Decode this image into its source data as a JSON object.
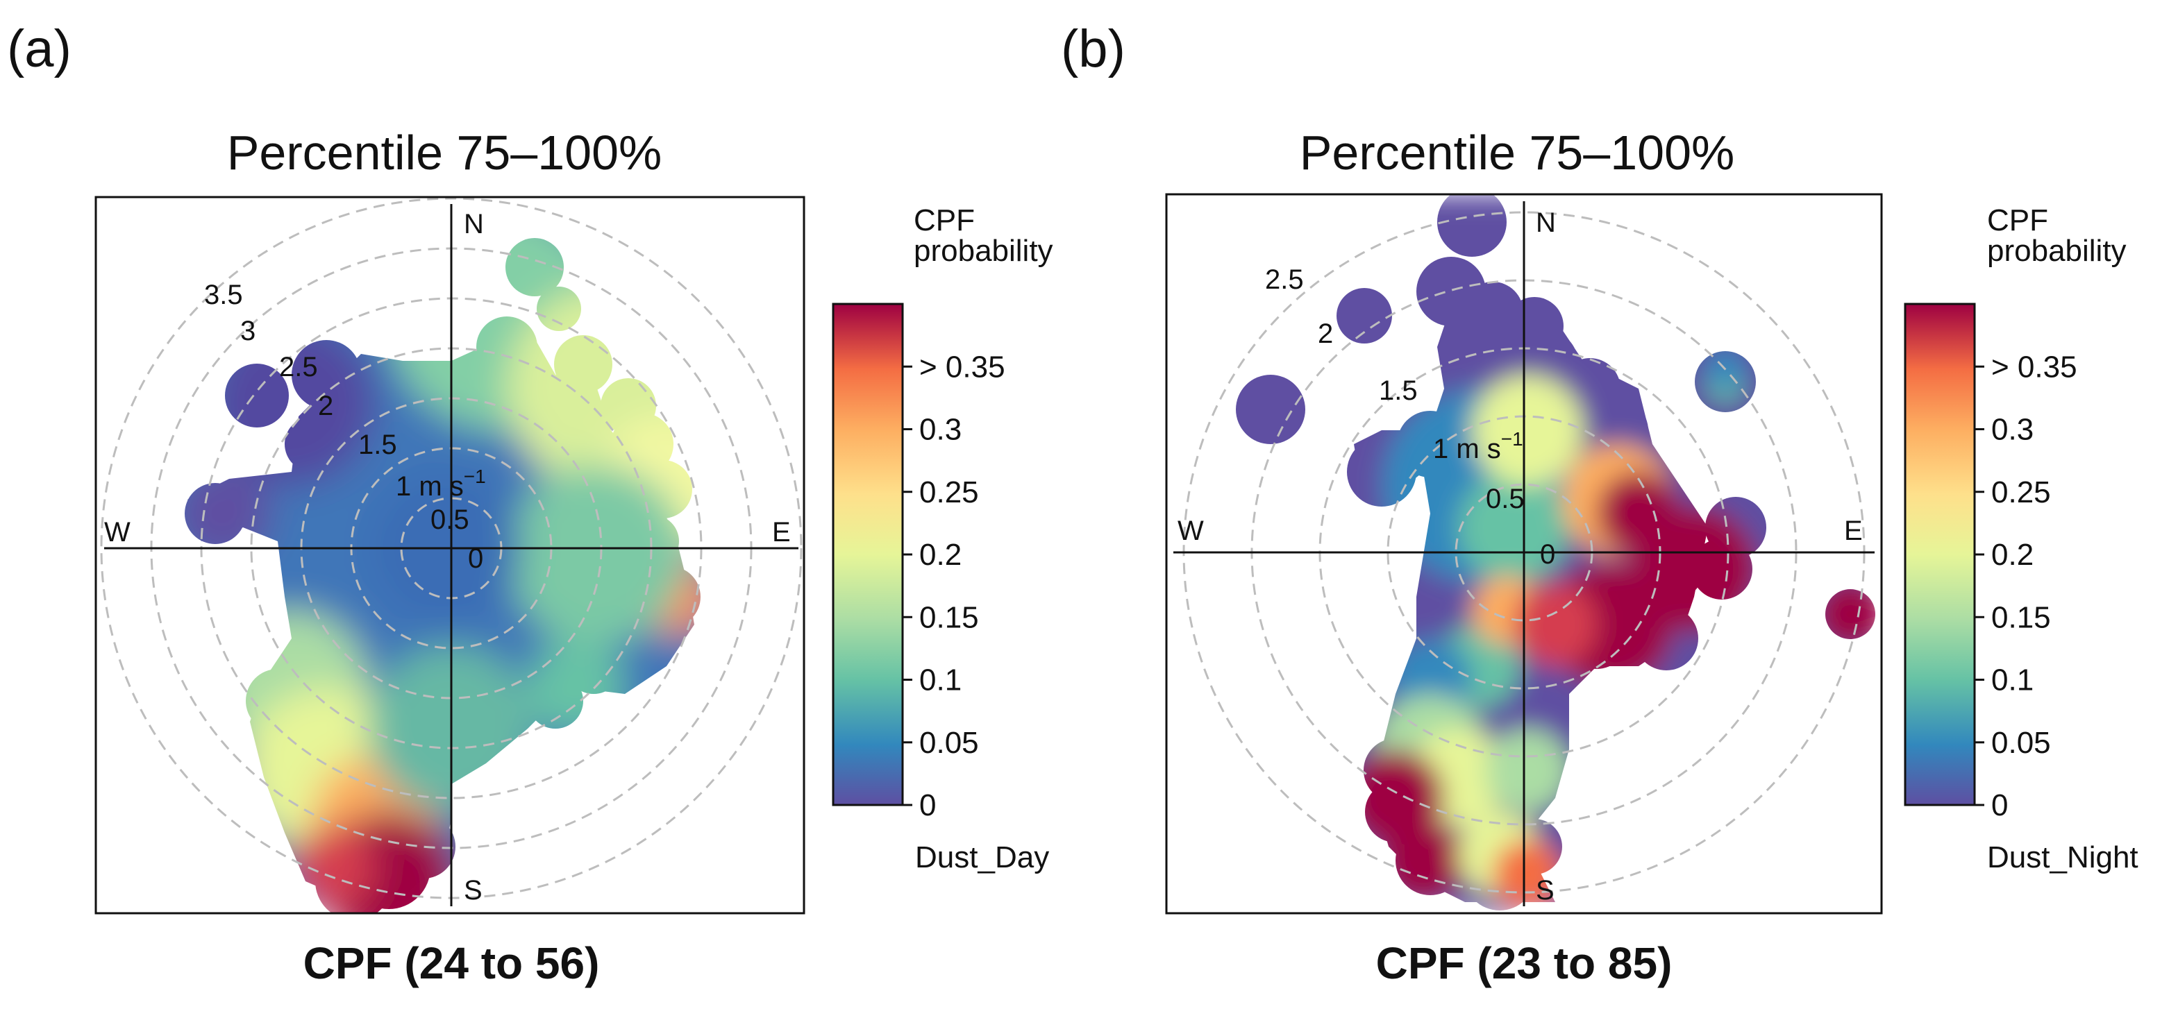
{
  "chart_data": [
    {
      "type": "polar-cpf",
      "panel_label": "(a)",
      "title": "Percentile 75–100%",
      "caption": "CPF (24 to 56)",
      "dataset": "Dust_Day",
      "directions": {
        "north": "N",
        "south": "S",
        "east": "E",
        "west": "W"
      },
      "ring_values": [
        0.5,
        1,
        1.5,
        2,
        2.5,
        3,
        3.5
      ],
      "ring_labels": [
        "0",
        "0.5",
        "1 m s",
        "1.5",
        "2",
        "2.5",
        "3",
        "3.5"
      ],
      "unit_superscript": "−1",
      "max_speed": 3.5,
      "colorbar": {
        "title_line1": "CPF",
        "title_line2": "probability",
        "ticks": [
          0,
          0.05,
          0.1,
          0.15,
          0.2,
          0.25,
          0.3,
          0.35
        ],
        "tick_labels": [
          "0",
          "0.05",
          "0.1",
          "0.15",
          "0.2",
          "0.25",
          "0.3",
          "> 0.35"
        ],
        "range": [
          0,
          0.4
        ]
      },
      "features": [
        {
          "bearing_deg": 22,
          "speed": 3.0,
          "cpf": 0.11
        },
        {
          "bearing_deg": 40,
          "speed": 2.5,
          "cpf": 0.15
        },
        {
          "bearing_deg": 62,
          "speed": 2.3,
          "cpf": 0.19
        },
        {
          "bearing_deg": 103,
          "speed": 2.5,
          "cpf": 0.28
        },
        {
          "bearing_deg": 142,
          "speed": 2.2,
          "cpf": 0.08
        },
        {
          "bearing_deg": 220,
          "speed": 2.6,
          "cpf": 0.13
        },
        {
          "bearing_deg": 200,
          "speed": 3.2,
          "cpf": 0.4
        },
        {
          "bearing_deg": 190,
          "speed": 2.8,
          "cpf": 0.22
        },
        {
          "bearing_deg": 305,
          "speed": 2.8,
          "cpf": 0.0
        },
        {
          "bearing_deg": 320,
          "speed": 2.2,
          "cpf": 0.02
        },
        {
          "bearing_deg": 280,
          "speed": 2.5,
          "cpf": 0.01
        }
      ]
    },
    {
      "type": "polar-cpf",
      "panel_label": "(b)",
      "title": "Percentile 75–100%",
      "caption": "CPF (23 to 85)",
      "dataset": "Dust_Night",
      "directions": {
        "north": "N",
        "south": "S",
        "east": "E",
        "west": "W"
      },
      "ring_values": [
        0.5,
        1,
        1.5,
        2,
        2.5
      ],
      "ring_labels": [
        "0",
        "0.5",
        "1 m s",
        "1.5",
        "2",
        "2.5"
      ],
      "unit_superscript": "−1",
      "max_speed": 2.8,
      "colorbar": {
        "title_line1": "CPF",
        "title_line2": "probability",
        "ticks": [
          0,
          0.05,
          0.1,
          0.15,
          0.2,
          0.25,
          0.3,
          0.35
        ],
        "tick_labels": [
          "0",
          "0.05",
          "0.1",
          "0.15",
          "0.2",
          "0.25",
          "0.3",
          "> 0.35"
        ],
        "range": [
          0,
          0.4
        ]
      },
      "features": [
        {
          "bearing_deg": 350,
          "speed": 2.6,
          "cpf": 0.0
        },
        {
          "bearing_deg": 320,
          "speed": 2.2,
          "cpf": 0.0
        },
        {
          "bearing_deg": 300,
          "speed": 2.3,
          "cpf": 0.0
        },
        {
          "bearing_deg": 56,
          "speed": 2.0,
          "cpf": 0.06
        },
        {
          "bearing_deg": 100,
          "speed": 0.8,
          "cpf": 0.4
        },
        {
          "bearing_deg": 95,
          "speed": 1.9,
          "cpf": 0.4
        },
        {
          "bearing_deg": 100,
          "speed": 2.7,
          "cpf": 0.4
        },
        {
          "bearing_deg": 195,
          "speed": 2.4,
          "cpf": 0.4
        },
        {
          "bearing_deg": 175,
          "speed": 2.0,
          "cpf": 0.2
        }
      ]
    }
  ]
}
